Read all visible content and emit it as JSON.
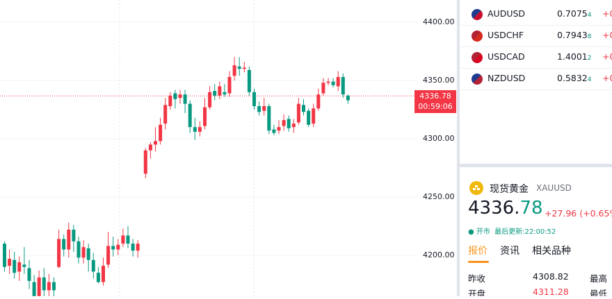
{
  "chart": {
    "price_axis_labels": [
      "4400.00",
      "4350.00",
      "4300.00",
      "4250.00",
      "4200.00"
    ],
    "current_price": "4336.78",
    "countdown": "00:59:06",
    "candles": [
      [
        4210,
        4190,
        4212,
        4186
      ],
      [
        4191,
        4197,
        4205,
        4184
      ],
      [
        4196,
        4185,
        4203,
        4180
      ],
      [
        4186,
        4194,
        4199,
        4178
      ],
      [
        4192,
        4190,
        4207,
        4184
      ],
      [
        4189,
        4178,
        4196,
        4171
      ],
      [
        4177,
        4165,
        4183,
        4162
      ],
      [
        4165,
        4181,
        4187,
        4160
      ],
      [
        4181,
        4170,
        4189,
        4165
      ],
      [
        4170,
        4177,
        4184,
        4160
      ],
      [
        4177,
        4170,
        4181,
        4163
      ],
      [
        4190,
        4214,
        4222,
        4189
      ],
      [
        4214,
        4205,
        4218,
        4199
      ],
      [
        4205,
        4222,
        4228,
        4198
      ],
      [
        4222,
        4212,
        4226,
        4203
      ],
      [
        4212,
        4198,
        4216,
        4193
      ],
      [
        4198,
        4207,
        4213,
        4193
      ],
      [
        4206,
        4196,
        4210,
        4186
      ],
      [
        4196,
        4186,
        4202,
        4180
      ],
      [
        4185,
        4177,
        4190,
        4176
      ],
      [
        4177,
        4191,
        4198,
        4174
      ],
      [
        4192,
        4208,
        4220,
        4189
      ],
      [
        4208,
        4205,
        4216,
        4199
      ],
      [
        4205,
        4209,
        4214,
        4200
      ],
      [
        4210,
        4217,
        4223,
        4207
      ],
      [
        4217,
        4210,
        4225,
        4206
      ],
      [
        4210,
        4204,
        4214,
        4199
      ],
      [
        4204,
        4210,
        4213,
        4198
      ],
      [
        4270,
        4290,
        4292,
        4266
      ],
      [
        4290,
        4295,
        4297,
        4283
      ],
      [
        4295,
        4298,
        4310,
        4289
      ],
      [
        4298,
        4312,
        4318,
        4295
      ],
      [
        4313,
        4329,
        4335,
        4308
      ],
      [
        4328,
        4337,
        4340,
        4325
      ],
      [
        4339,
        4334,
        4342,
        4326
      ],
      [
        4335,
        4338,
        4342,
        4330
      ],
      [
        4338,
        4330,
        4342,
        4322
      ],
      [
        4330,
        4310,
        4333,
        4305
      ],
      [
        4310,
        4306,
        4318,
        4299
      ],
      [
        4306,
        4310,
        4315,
        4302
      ],
      [
        4311,
        4327,
        4335,
        4308
      ],
      [
        4327,
        4340,
        4345,
        4325
      ],
      [
        4341,
        4337,
        4347,
        4333
      ],
      [
        4337,
        4345,
        4349,
        4334
      ],
      [
        4340,
        4338,
        4347,
        4336
      ],
      [
        4339,
        4353,
        4358,
        4336
      ],
      [
        4354,
        4363,
        4370,
        4350
      ],
      [
        4362,
        4360,
        4370,
        4354
      ],
      [
        4360,
        4361,
        4366,
        4357
      ],
      [
        4359,
        4340,
        4362,
        4337
      ],
      [
        4340,
        4328,
        4343,
        4325
      ],
      [
        4328,
        4323,
        4332,
        4320
      ],
      [
        4324,
        4328,
        4335,
        4320
      ],
      [
        4328,
        4307,
        4330,
        4304
      ],
      [
        4308,
        4305,
        4312,
        4303
      ],
      [
        4307,
        4310,
        4316,
        4304
      ],
      [
        4311,
        4316,
        4321,
        4307
      ],
      [
        4317,
        4309,
        4320,
        4306
      ],
      [
        4310,
        4313,
        4317,
        4305
      ],
      [
        4314,
        4330,
        4335,
        4312
      ],
      [
        4329,
        4323,
        4334,
        4320
      ],
      [
        4324,
        4312,
        4326,
        4310
      ],
      [
        4313,
        4326,
        4330,
        4310
      ],
      [
        4326,
        4338,
        4343,
        4324
      ],
      [
        4339,
        4348,
        4352,
        4337
      ],
      [
        4348,
        4349,
        4352,
        4346
      ],
      [
        4349,
        4346,
        4352,
        4344
      ],
      [
        4345,
        4353,
        4358,
        4341
      ],
      [
        4353,
        4338,
        4356,
        4335
      ],
      [
        4337,
        4333,
        4338,
        4330
      ]
    ]
  },
  "watchlist": {
    "rows": [
      {
        "symbol": "AUDUSD",
        "price_main": "0.7075",
        "price_sub": "4",
        "change": "+0",
        "flag": "au-us"
      },
      {
        "symbol": "USDCHF",
        "price_main": "0.7943",
        "price_sub": "8",
        "change": "+0",
        "flag": "us-ch"
      },
      {
        "symbol": "USDCAD",
        "price_main": "1.4001",
        "price_sub": "2",
        "change": "+0",
        "flag": "us-ca"
      },
      {
        "symbol": "NZDUSD",
        "price_main": "0.5832",
        "price_sub": "4",
        "change": "+0",
        "flag": "nz-us"
      }
    ]
  },
  "detail": {
    "name": "现货黄金",
    "symbol": "XAUUSD",
    "price_main": "4336.",
    "price_decimals": "78",
    "change": "+27.96",
    "change_pct": "(+0.65%",
    "status": "开市",
    "updated_label": "最后更新:22:00:52",
    "tabs": [
      "报价",
      "资讯",
      "相关品种"
    ],
    "stats": [
      {
        "label": "昨收",
        "value": "4308.82",
        "label2": "最高"
      },
      {
        "label": "开盘",
        "value": "4311.28",
        "label2": "最低"
      }
    ],
    "colors": {
      "up": "#f23645",
      "down": "#089981",
      "gold": "#f0b90b",
      "accent": "#f7931a"
    }
  }
}
